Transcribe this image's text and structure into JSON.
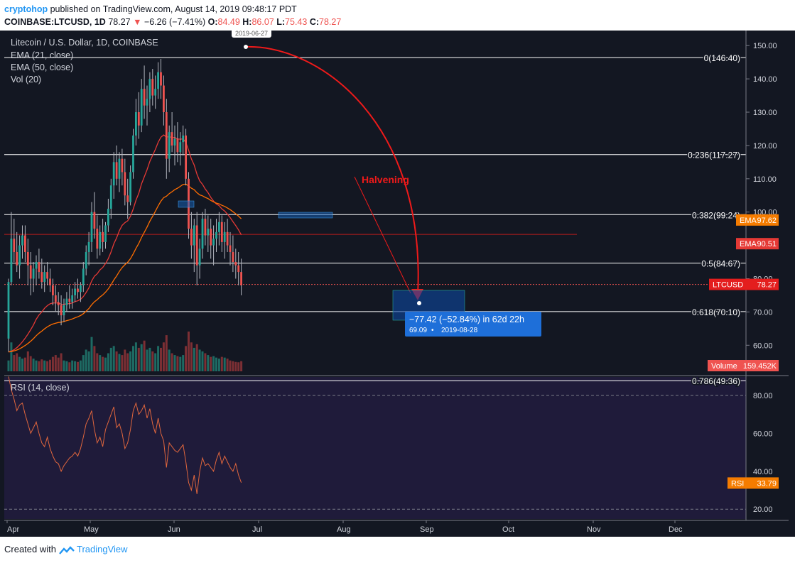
{
  "header": {
    "author": "cryptohop",
    "published_text": "published on TradingView.com, August 14, 2019 09:48:17 PDT",
    "symbol": "COINBASE:LTCUSD, 1D",
    "last": "78.27",
    "arrow": "▼",
    "change": "−6.26 (−7.41%)",
    "o_label": "O:",
    "o": "84.49",
    "h_label": "H:",
    "h": "86.07",
    "l_label": "L:",
    "l": "75.43",
    "c_label": "C:",
    "c": "78.27"
  },
  "legend": {
    "title": "Litecoin / U.S. Dollar, 1D, COINBASE",
    "ema21": "EMA (21, close)",
    "ema50": "EMA (50, close)",
    "vol": "Vol (20)",
    "rsi": "RSI (14, close)"
  },
  "annotations": {
    "halvening": "Halvening",
    "top_date": "2019-06-27",
    "measure_main": "−77.42 (−52.84%) in 62d 22h",
    "measure_value": "69.09",
    "measure_date": "2019-08-28"
  },
  "colors": {
    "background": "#131722",
    "rsi_background": "#1f1b3a",
    "up": "#26a69a",
    "down": "#ef5350",
    "ema21": "#e53935",
    "ema50": "#ff6d00",
    "fib_line": "#ffffff",
    "measure_box": "#1565c0",
    "label_ltc": "#e41e1e",
    "label_ema50": "#f57c00",
    "label_ema21": "#e53935"
  },
  "footer": {
    "created_with": "Created with",
    "brand": "TradingView"
  },
  "chart_data": {
    "type": "candlestick",
    "series_name": "LTCUSD",
    "x_axis_labels": [
      "Apr",
      "May",
      "Jun",
      "Jul",
      "Aug",
      "Sep",
      "Oct",
      "Nov",
      "Dec"
    ],
    "price_ticks": [
      "150.00",
      "140.00",
      "130.00",
      "120.00",
      "110.00",
      "100.00",
      "90.00",
      "80.00",
      "70.00",
      "60.00"
    ],
    "ylim": [
      46,
      151
    ],
    "rsi_ticks": [
      "80.00",
      "60.00",
      "40.00",
      "20.00"
    ],
    "rsi_ylim": [
      15,
      97
    ],
    "fib_levels": [
      {
        "label": "0(146.40)",
        "price": 146.4
      },
      {
        "label": "0.236(117.27)",
        "price": 117.27
      },
      {
        "label": "0.382(99.24)",
        "price": 99.24
      },
      {
        "label": "0.5(84.67)",
        "price": 84.67
      },
      {
        "label": "0.618(70.10)",
        "price": 70.1
      },
      {
        "label": "0.786(49.36)",
        "price": 49.36
      }
    ],
    "price_labels": [
      {
        "name": "EMA",
        "value": "97.62"
      },
      {
        "name": "EMA",
        "value": "90.51"
      },
      {
        "name": "LTCUSD",
        "value": "78.27"
      },
      {
        "name": "Volume",
        "value": "159.452K"
      },
      {
        "name": "RSI",
        "value": "33.79"
      }
    ],
    "ohlc": [
      [
        62,
        80,
        58,
        79
      ],
      [
        79,
        100,
        78,
        92
      ],
      [
        92,
        98,
        85,
        88
      ],
      [
        88,
        94,
        82,
        84
      ],
      [
        84,
        93,
        80,
        90
      ],
      [
        90,
        96,
        86,
        93
      ],
      [
        93,
        96,
        85,
        88
      ],
      [
        88,
        92,
        78,
        84
      ],
      [
        84,
        88,
        75,
        80
      ],
      [
        80,
        85,
        76,
        83
      ],
      [
        83,
        87,
        78,
        85
      ],
      [
        85,
        89,
        80,
        82
      ],
      [
        82,
        86,
        77,
        79
      ],
      [
        79,
        84,
        76,
        82
      ],
      [
        82,
        85,
        78,
        80
      ],
      [
        80,
        83,
        76,
        78
      ],
      [
        78,
        80,
        72,
        75
      ],
      [
        75,
        78,
        70,
        73
      ],
      [
        73,
        76,
        69,
        72
      ],
      [
        72,
        75,
        66,
        69
      ],
      [
        69,
        74,
        67,
        72
      ],
      [
        72,
        76,
        70,
        74
      ],
      [
        74,
        78,
        71,
        73
      ],
      [
        73,
        77,
        71,
        75
      ],
      [
        75,
        79,
        73,
        77
      ],
      [
        77,
        80,
        74,
        76
      ],
      [
        76,
        79,
        73,
        78
      ],
      [
        78,
        85,
        76,
        83
      ],
      [
        83,
        90,
        81,
        88
      ],
      [
        88,
        94,
        84,
        91
      ],
      [
        91,
        103,
        88,
        100
      ],
      [
        100,
        106,
        92,
        95
      ],
      [
        95,
        99,
        86,
        89
      ],
      [
        89,
        96,
        87,
        94
      ],
      [
        94,
        98,
        88,
        91
      ],
      [
        91,
        97,
        89,
        96
      ],
      [
        96,
        104,
        94,
        101
      ],
      [
        101,
        110,
        98,
        108
      ],
      [
        108,
        118,
        104,
        115
      ],
      [
        115,
        120,
        108,
        110
      ],
      [
        110,
        118,
        106,
        116
      ],
      [
        116,
        119,
        108,
        112
      ],
      [
        112,
        116,
        102,
        105
      ],
      [
        105,
        110,
        98,
        103
      ],
      [
        103,
        114,
        102,
        112
      ],
      [
        112,
        125,
        110,
        123
      ],
      [
        123,
        134,
        120,
        130
      ],
      [
        130,
        136,
        122,
        126
      ],
      [
        126,
        140,
        124,
        137
      ],
      [
        137,
        144,
        128,
        132
      ],
      [
        132,
        138,
        126,
        134
      ],
      [
        134,
        142,
        130,
        140
      ],
      [
        140,
        143,
        132,
        135
      ],
      [
        135,
        141,
        131,
        137
      ],
      [
        137,
        145,
        134,
        142
      ],
      [
        142,
        146,
        134,
        138
      ],
      [
        138,
        141,
        126,
        130
      ],
      [
        130,
        134,
        110,
        116
      ],
      [
        116,
        126,
        112,
        124
      ],
      [
        124,
        130,
        118,
        120
      ],
      [
        120,
        126,
        114,
        122
      ],
      [
        122,
        127,
        115,
        118
      ],
      [
        118,
        124,
        114,
        121
      ],
      [
        121,
        126,
        117,
        123
      ],
      [
        123,
        125,
        108,
        110
      ],
      [
        110,
        112,
        92,
        95
      ],
      [
        95,
        100,
        86,
        90
      ],
      [
        90,
        98,
        82,
        96
      ],
      [
        96,
        100,
        78,
        84
      ],
      [
        84,
        92,
        80,
        89
      ],
      [
        89,
        100,
        86,
        98
      ],
      [
        98,
        101,
        90,
        93
      ],
      [
        93,
        99,
        88,
        95
      ],
      [
        95,
        98,
        86,
        90
      ],
      [
        90,
        96,
        84,
        92
      ],
      [
        92,
        98,
        88,
        94
      ],
      [
        94,
        100,
        90,
        97
      ],
      [
        97,
        99,
        88,
        91
      ],
      [
        91,
        97,
        86,
        94
      ],
      [
        94,
        98,
        88,
        90
      ],
      [
        90,
        94,
        84,
        88
      ],
      [
        88,
        93,
        82,
        85
      ],
      [
        85,
        89,
        80,
        84
      ],
      [
        84,
        88,
        78,
        82
      ],
      [
        82,
        86,
        75,
        78
      ]
    ],
    "volume": [
      30,
      80,
      45,
      50,
      40,
      35,
      38,
      55,
      42,
      35,
      30,
      28,
      33,
      30,
      28,
      32,
      40,
      45,
      38,
      50,
      30,
      28,
      25,
      30,
      28,
      26,
      30,
      45,
      60,
      55,
      95,
      70,
      50,
      45,
      40,
      38,
      50,
      65,
      70,
      55,
      48,
      45,
      60,
      50,
      55,
      70,
      80,
      65,
      75,
      85,
      60,
      65,
      55,
      50,
      70,
      65,
      80,
      100,
      60,
      50,
      45,
      42,
      40,
      45,
      70,
      110,
      80,
      65,
      75,
      60,
      55,
      50,
      45,
      40,
      42,
      38,
      35,
      40,
      38,
      35,
      30,
      28,
      26,
      25,
      28
    ],
    "rsi": [
      90,
      83,
      78,
      72,
      75,
      76,
      70,
      65,
      60,
      63,
      66,
      60,
      55,
      53,
      58,
      52,
      48,
      45,
      44,
      40,
      43,
      45,
      47,
      48,
      50,
      48,
      52,
      58,
      65,
      68,
      72,
      62,
      55,
      58,
      53,
      62,
      66,
      70,
      74,
      63,
      65,
      60,
      52,
      55,
      62,
      72,
      76,
      70,
      72,
      75,
      68,
      73,
      65,
      60,
      68,
      60,
      56,
      42,
      55,
      53,
      51,
      50,
      52,
      54,
      45,
      34,
      30,
      38,
      28,
      40,
      47,
      43,
      44,
      42,
      40,
      46,
      50,
      44,
      48,
      45,
      42,
      40,
      44,
      38,
      34
    ],
    "ema21_last": 90.51,
    "ema50_last": 97.62
  }
}
